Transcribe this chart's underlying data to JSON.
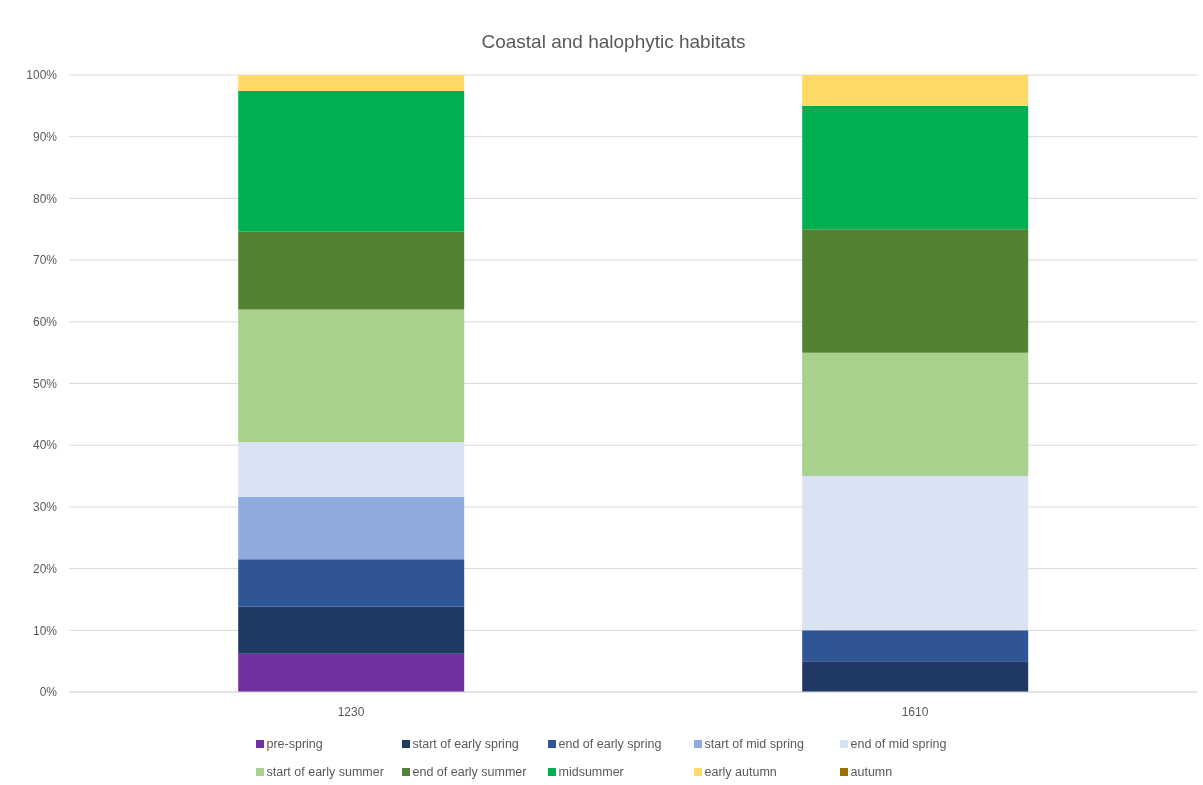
{
  "chart_data": {
    "type": "bar",
    "title": "Coastal and halophytic habitats",
    "categories": [
      "1230",
      "1610"
    ],
    "stacked": true,
    "series": [
      {
        "name": "pre-spring",
        "color": "#7030a0",
        "values": [
          6.2,
          0
        ]
      },
      {
        "name": "start of early spring",
        "color": "#203864",
        "values": [
          7.6,
          5
        ]
      },
      {
        "name": "end of early spring",
        "color": "#2f5597",
        "values": [
          7.7,
          5
        ]
      },
      {
        "name": "start of mid spring",
        "color": "#8faadc",
        "values": [
          10.1,
          0
        ]
      },
      {
        "name": "end of mid spring",
        "color": "#dae3f3",
        "values": [
          8.9,
          25
        ]
      },
      {
        "name": "start of early summer",
        "color": "#a9d18e",
        "values": [
          21.5,
          20
        ]
      },
      {
        "name": "end of early summer",
        "color": "#548235",
        "values": [
          12.6,
          20
        ]
      },
      {
        "name": "midsummer",
        "color": "#00b050",
        "values": [
          22.8,
          20
        ]
      },
      {
        "name": "early autumn",
        "color": "#ffd966",
        "values": [
          2.6,
          5
        ]
      },
      {
        "name": "autumn",
        "color": "#997300",
        "values": [
          0,
          0
        ]
      }
    ],
    "ylim": [
      0,
      100
    ],
    "yticks": [
      {
        "value": 0,
        "label": "0%"
      },
      {
        "value": 10,
        "label": "10%"
      },
      {
        "value": 20,
        "label": "20%"
      },
      {
        "value": 30,
        "label": "30%"
      },
      {
        "value": 40,
        "label": "40%"
      },
      {
        "value": 50,
        "label": "50%"
      },
      {
        "value": 60,
        "label": "60%"
      },
      {
        "value": 70,
        "label": "70%"
      },
      {
        "value": 80,
        "label": "80%"
      },
      {
        "value": 90,
        "label": "90%"
      },
      {
        "value": 100,
        "label": "100%"
      }
    ],
    "grid": "y",
    "legend": "bottom"
  }
}
